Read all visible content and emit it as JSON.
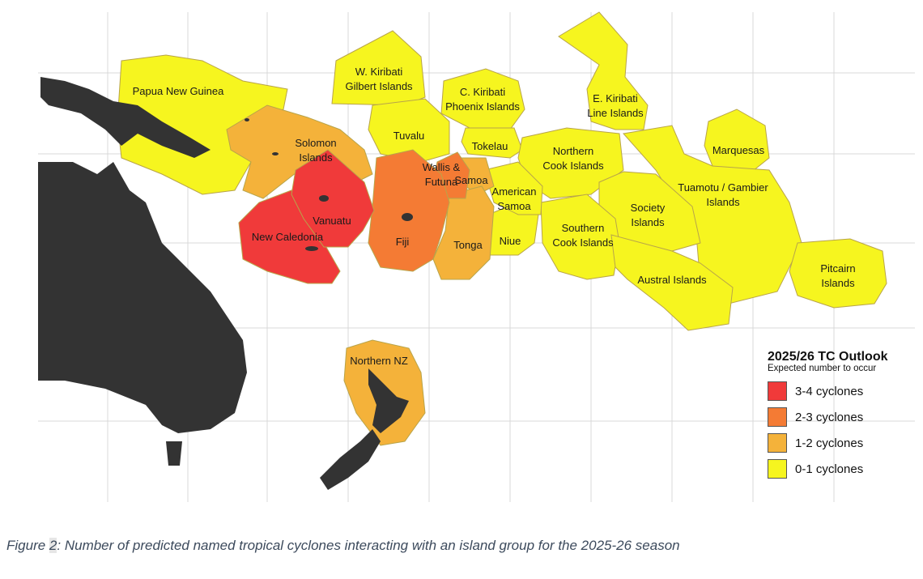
{
  "categories": [
    {
      "id": "c34",
      "label": "3-4 cyclones",
      "color": "#f03a3a"
    },
    {
      "id": "c23",
      "label": "2-3 cyclones",
      "color": "#f47b34"
    },
    {
      "id": "c12",
      "label": "1-2 cyclones",
      "color": "#f4b23a"
    },
    {
      "id": "c01",
      "label": "0-1 cyclones",
      "color": "#f6f51f"
    }
  ],
  "land_color": "#333333",
  "regions": [
    {
      "id": "png",
      "lines": [
        "Papua New Guinea"
      ],
      "category": "c01"
    },
    {
      "id": "wkir",
      "lines": [
        "W. Kiribati",
        "Gilbert Islands"
      ],
      "category": "c01"
    },
    {
      "id": "ckir",
      "lines": [
        "C. Kiribati",
        "Phoenix  Islands"
      ],
      "category": "c01"
    },
    {
      "id": "ekir",
      "lines": [
        "E. Kiribati",
        "Line  Islands"
      ],
      "category": "c01"
    },
    {
      "id": "tuvalu",
      "lines": [
        "Tuvalu"
      ],
      "category": "c01"
    },
    {
      "id": "tokelau",
      "lines": [
        "Tokelau"
      ],
      "category": "c01"
    },
    {
      "id": "ncook",
      "lines": [
        "Northern",
        "Cook Islands"
      ],
      "category": "c01"
    },
    {
      "id": "marq",
      "lines": [
        "Marquesas"
      ],
      "category": "c01"
    },
    {
      "id": "tuam",
      "lines": [
        "Tuamotu / Gambier",
        "Islands"
      ],
      "category": "c01"
    },
    {
      "id": "society",
      "lines": [
        "Society",
        "Islands"
      ],
      "category": "c01"
    },
    {
      "id": "scook",
      "lines": [
        "Southern",
        "Cook Islands"
      ],
      "category": "c01"
    },
    {
      "id": "austral",
      "lines": [
        "Austral Islands"
      ],
      "category": "c01"
    },
    {
      "id": "pitcairn",
      "lines": [
        "Pitcairn",
        "Islands"
      ],
      "category": "c01"
    },
    {
      "id": "niue",
      "lines": [
        "Niue"
      ],
      "category": "c01"
    },
    {
      "id": "amsamoa",
      "lines": [
        "American",
        "Samoa"
      ],
      "category": "c01"
    },
    {
      "id": "samoa",
      "lines": [
        "Samoa"
      ],
      "category": "c12"
    },
    {
      "id": "solomon",
      "lines": [
        "Solomon",
        "Islands"
      ],
      "category": "c12"
    },
    {
      "id": "tonga",
      "lines": [
        "Tonga"
      ],
      "category": "c12"
    },
    {
      "id": "nnz",
      "lines": [
        "Northern NZ"
      ],
      "category": "c12"
    },
    {
      "id": "wallis",
      "lines": [
        "Wallis &",
        "Futuna"
      ],
      "category": "c23"
    },
    {
      "id": "fiji",
      "lines": [
        "Fiji"
      ],
      "category": "c23"
    },
    {
      "id": "newcal",
      "lines": [
        "New Caledonia"
      ],
      "category": "c34"
    },
    {
      "id": "vanuatu",
      "lines": [
        "Vanuatu"
      ],
      "category": "c34"
    }
  ],
  "legend": {
    "title": "2025/26 TC Outlook",
    "subtitle": "Expected number to occur"
  },
  "caption": {
    "prefix": "Figure ",
    "number": "2",
    "text": ": Number of predicted named tropical cyclones interacting with an island group for the 2025-26 season"
  }
}
